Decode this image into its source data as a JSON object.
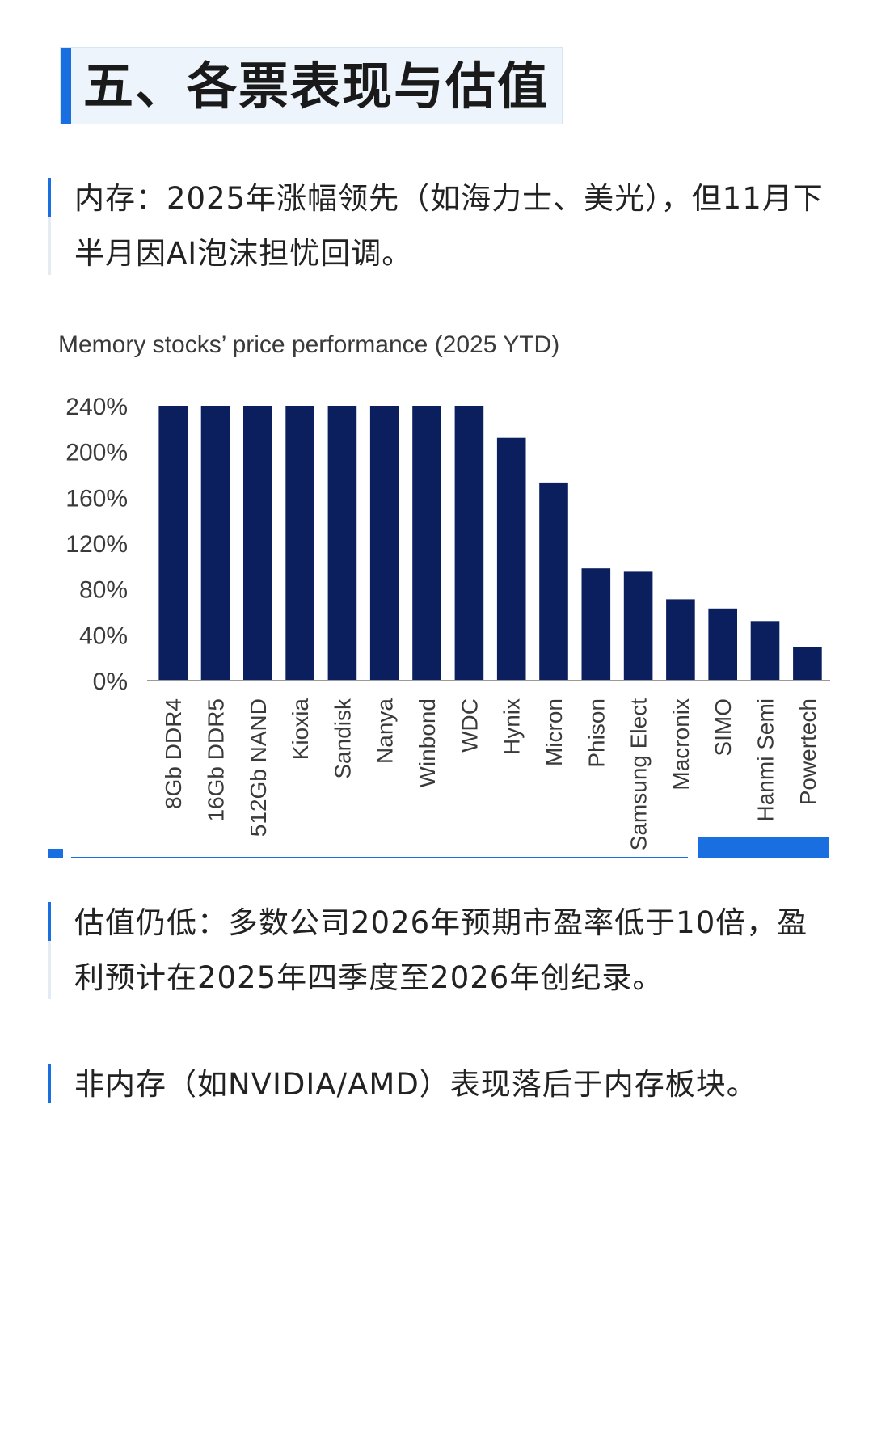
{
  "header": {
    "title": "五、各票表现与估值"
  },
  "paragraphs": [
    {
      "text": "内存：2025年涨幅领先（如海力士、美光），但11月下半月因AI泡沫担忧回调。"
    },
    {
      "text": "估值仍低：多数公司2026年预期市盈率低于10倍，盈利预计在2025年四季度至2026年创纪录。"
    },
    {
      "text": "非内存（如NVIDIA/AMD）表现落后于内存板块。"
    }
  ],
  "colors": {
    "accent": "#1a6fe0",
    "bar": "#0b1f5e"
  },
  "chart_data": {
    "type": "bar",
    "title": "Memory stocks’ price performance (2025 YTD)",
    "categories": [
      "8Gb DDR4",
      "16Gb DDR5",
      "512Gb NAND",
      "Kioxia",
      "Sandisk",
      "Nanya",
      "Winbond",
      "WDC",
      "Hynix",
      "Micron",
      "Phison",
      "Samsung Elect",
      "Macronix",
      "SIMO",
      "Hanmi Semi",
      "Powertech"
    ],
    "values": [
      240,
      240,
      240,
      240,
      240,
      240,
      240,
      240,
      212,
      173,
      98,
      95,
      71,
      63,
      52,
      29
    ],
    "ylim": [
      0,
      240
    ],
    "yticks": [
      0,
      40,
      80,
      120,
      160,
      200,
      240
    ],
    "ytick_labels": [
      "0%",
      "40%",
      "80%",
      "120%",
      "160%",
      "200%",
      "240%"
    ],
    "grid": false,
    "legend": "none"
  }
}
